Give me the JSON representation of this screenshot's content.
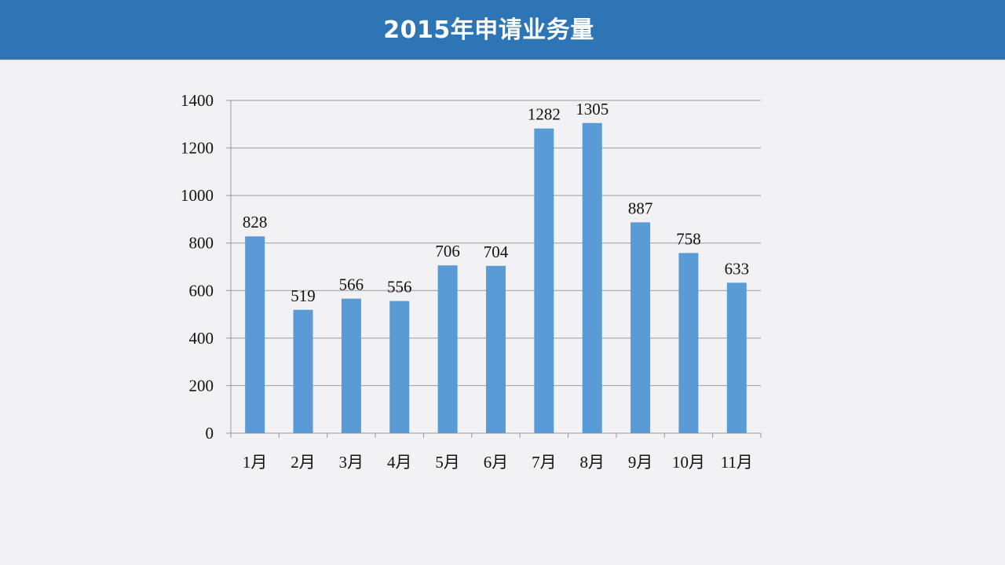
{
  "header": {
    "title": "2015年申请业务量"
  },
  "colors": {
    "header_bg": "#2e75b6",
    "bar": "#5b9bd5",
    "gridline": "#9a9a9a",
    "background": "#f2f2f4"
  },
  "chart_data": {
    "type": "bar",
    "title": "",
    "xlabel": "",
    "ylabel": "",
    "categories": [
      "1月",
      "2月",
      "3月",
      "4月",
      "5月",
      "6月",
      "7月",
      "8月",
      "9月",
      "10月",
      "11月"
    ],
    "values": [
      828,
      519,
      566,
      556,
      706,
      704,
      1282,
      1305,
      887,
      758,
      633
    ],
    "ylim": [
      0,
      1400
    ],
    "yticks": [
      0,
      200,
      400,
      600,
      800,
      1000,
      1200,
      1400
    ],
    "grid": true,
    "legend": "none",
    "data_labels": true
  }
}
